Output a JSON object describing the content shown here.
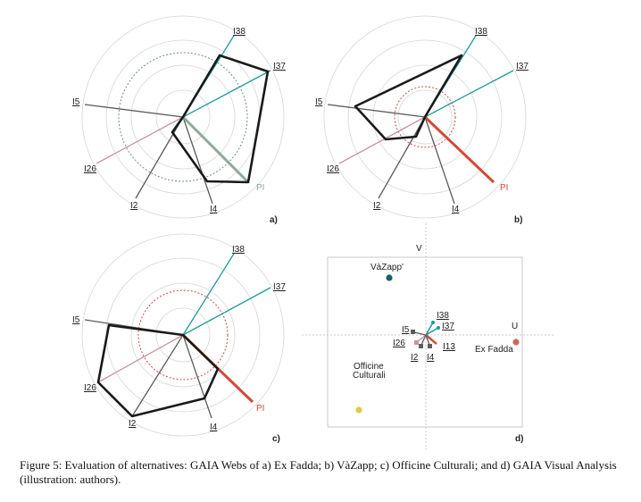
{
  "colors": {
    "ring": "#d6d6d6",
    "web": "#1a1a1a",
    "teal": "#1e9a95",
    "pink": "#c495a2",
    "gray": "#5c5c5c",
    "pi_a": "#8fa89b",
    "pi_red": "#d44a35",
    "dash_a": "#6e8f86",
    "dash_red": "#c84a40"
  },
  "labels": {
    "i38": "I38",
    "i37": "I37",
    "i5": "I5",
    "i26": "I26",
    "i2": "I2",
    "i4": "I4",
    "pi": "PI",
    "i13": "I13"
  },
  "panels": {
    "a": "a)",
    "b": "b)",
    "c": "c)",
    "d": "d)"
  },
  "gaia": {
    "axis_v": "V",
    "axis_u": "U",
    "alternatives": [
      {
        "name": "VàZapp'",
        "color": "#1a5f6e"
      },
      {
        "name": "Ex Fadda",
        "color": "#c86a5e"
      },
      {
        "name_line1": "Officine",
        "name_line2": "Culturali",
        "color": "#e2c94a"
      }
    ]
  },
  "caption": "Figure 5: Evaluation of alternatives: GAIA Webs of a) Ex Fadda; b) VàZapp; c) Officine Culturali; and d) GAIA Visual Analysis (illustration: authors)."
}
